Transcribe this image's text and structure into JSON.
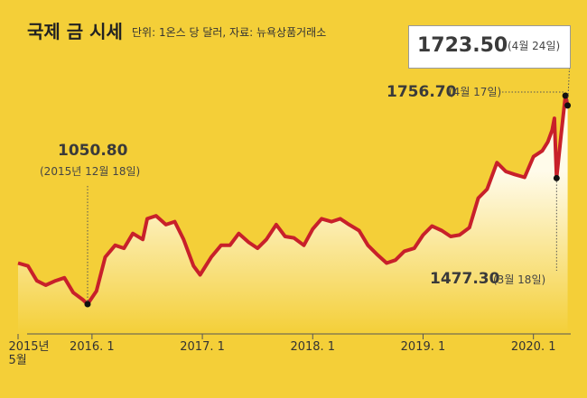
{
  "chart_data": {
    "type": "line",
    "title": "국제 금 시세",
    "subtitle": "단위: 1온스 당 달러, 자료: 뉴욕상품거래소",
    "x": [
      2015.33,
      2015.42,
      2015.5,
      2015.58,
      2015.67,
      2015.75,
      2015.83,
      2015.92,
      2015.96,
      2016.04,
      2016.12,
      2016.21,
      2016.29,
      2016.37,
      2016.46,
      2016.5,
      2016.58,
      2016.67,
      2016.75,
      2016.83,
      2016.92,
      2016.98,
      2017.08,
      2017.17,
      2017.25,
      2017.33,
      2017.42,
      2017.5,
      2017.58,
      2017.67,
      2017.75,
      2017.83,
      2017.92,
      2018.0,
      2018.08,
      2018.17,
      2018.25,
      2018.33,
      2018.42,
      2018.5,
      2018.58,
      2018.67,
      2018.75,
      2018.83,
      2018.92,
      2019.0,
      2019.08,
      2019.17,
      2019.25,
      2019.33,
      2019.42,
      2019.5,
      2019.58,
      2019.67,
      2019.75,
      2019.83,
      2019.92,
      2020.0,
      2020.08,
      2020.13,
      2020.17,
      2020.19,
      2020.21,
      2020.25,
      2020.29,
      2020.31
    ],
    "series": [
      {
        "name": "금 시세",
        "color": "#c8202a",
        "values": [
          1190,
          1180,
          1130,
          1115,
          1130,
          1140,
          1090,
          1065,
          1050.8,
          1095,
          1210,
          1250,
          1240,
          1290,
          1270,
          1340,
          1350,
          1320,
          1330,
          1270,
          1180,
          1150,
          1210,
          1250,
          1250,
          1290,
          1260,
          1240,
          1270,
          1320,
          1280,
          1275,
          1250,
          1305,
          1340,
          1330,
          1340,
          1320,
          1300,
          1250,
          1220,
          1190,
          1200,
          1230,
          1240,
          1285,
          1315,
          1300,
          1280,
          1285,
          1310,
          1410,
          1440,
          1530,
          1500,
          1490,
          1480,
          1550,
          1570,
          1600,
          1640,
          1680,
          1477.3,
          1620,
          1756.7,
          1723.5
        ]
      }
    ],
    "annotations": [
      {
        "x": 2015.96,
        "value": 1050.8,
        "label": "1050.80",
        "note": "(2015년 12월 18일)"
      },
      {
        "x": 2020.29,
        "value": 1756.7,
        "label": "1756.70",
        "note": "(4월 17일)"
      },
      {
        "x": 2020.21,
        "value": 1477.3,
        "label": "1477.30",
        "note": "(3월 18일)"
      },
      {
        "x": 2020.31,
        "value": 1723.5,
        "label": "1723.50",
        "note": "(4월 24일)"
      }
    ],
    "xlim": [
      2015.33,
      2020.42
    ],
    "ylim": [
      950,
      2050
    ],
    "xticks": [
      {
        "value": 2015.33,
        "label": "2015년\n5월"
      },
      {
        "value": 2016,
        "label": "2016. 1"
      },
      {
        "value": 2017,
        "label": "2017. 1"
      },
      {
        "value": 2018,
        "label": "2018. 1"
      },
      {
        "value": 2019,
        "label": "2019. 1"
      },
      {
        "value": 2020,
        "label": "2020. 1"
      }
    ],
    "background": "#f4cf38"
  }
}
